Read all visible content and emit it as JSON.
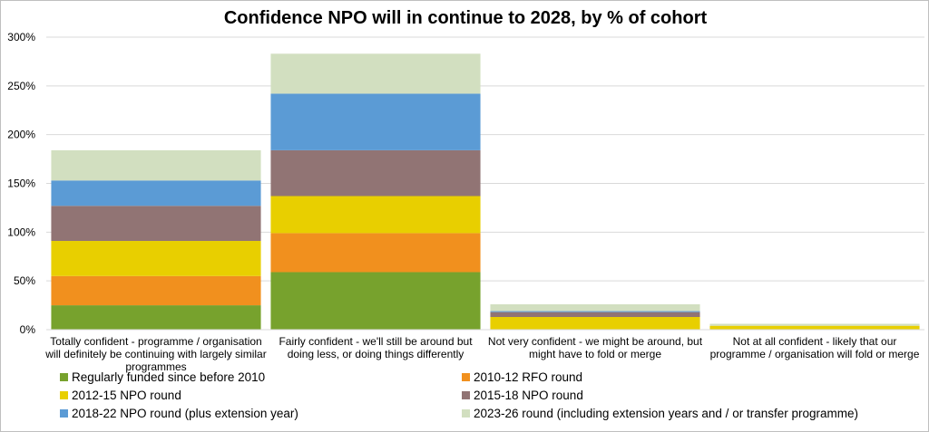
{
  "chart_data": {
    "type": "bar",
    "stacked": true,
    "title": "Confidence NPO will in continue to 2028, by % of cohort",
    "xlabel": "",
    "ylabel": "",
    "ylim": [
      0,
      300
    ],
    "yticks": [
      "0%",
      "50%",
      "100%",
      "150%",
      "200%",
      "250%",
      "300%"
    ],
    "grid": true,
    "legend_position": "bottom",
    "categories": [
      [
        "Totally confident - programme / organisation",
        "will definitely be continuing with largely similar",
        "programmes"
      ],
      [
        "Fairly confident - we'll still be around but",
        "doing less, or doing things differently"
      ],
      [
        "Not very confident - we might be around, but",
        "might have to fold or merge"
      ],
      [
        "Not at all confident - likely that our",
        "programme / organisation will fold or merge"
      ]
    ],
    "series": [
      {
        "name": "Regularly funded since before 2010",
        "color": "#77a22d",
        "values": [
          25,
          59,
          0,
          0
        ]
      },
      {
        "name": "2010-12 RFO round",
        "color": "#f1901e",
        "values": [
          30,
          40,
          0,
          0
        ]
      },
      {
        "name": "2012-15 NPO round",
        "color": "#e8cf00",
        "values": [
          36,
          38,
          13,
          4
        ]
      },
      {
        "name": "2015-18 NPO round",
        "color": "#917474",
        "values": [
          36,
          47,
          5,
          0
        ]
      },
      {
        "name": "2018-22 NPO round (plus extension year)",
        "color": "#5b9bd5",
        "values": [
          26,
          58,
          1,
          0
        ]
      },
      {
        "name": "2023-26 round (including extension years and / or transfer programme)",
        "color": "#d2dfc0",
        "values": [
          31,
          41,
          7,
          2
        ]
      }
    ]
  }
}
